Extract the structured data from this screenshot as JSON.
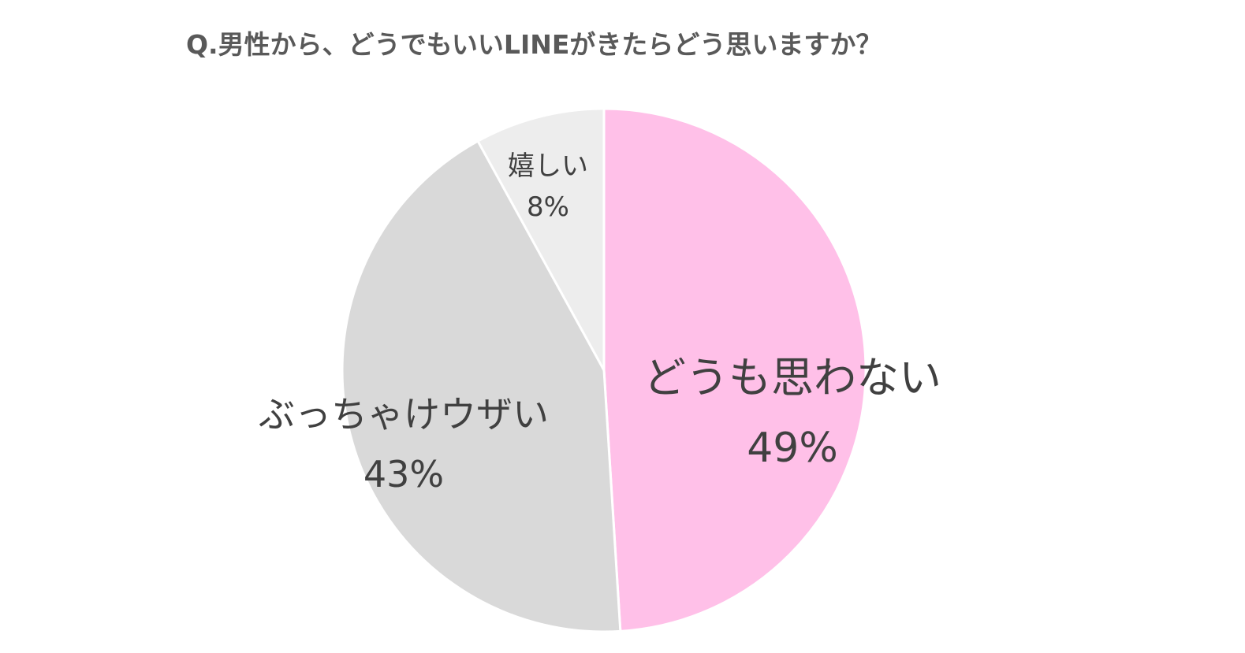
{
  "chart_data": {
    "type": "pie",
    "title": "Q.男性から、どうでもいいLINEがきたらどう思いますか？",
    "categories": [
      "どうも思わない",
      "ぶっちゃけウザい",
      "嬉しい"
    ],
    "values": [
      49,
      43,
      8
    ],
    "value_labels": [
      "49%",
      "43%",
      "8%"
    ],
    "colors": [
      "#FFC0E8",
      "#D9D9D9",
      "#EDEDED"
    ],
    "start_angle_deg": 0,
    "direction": "clockwise",
    "legend": "none"
  }
}
